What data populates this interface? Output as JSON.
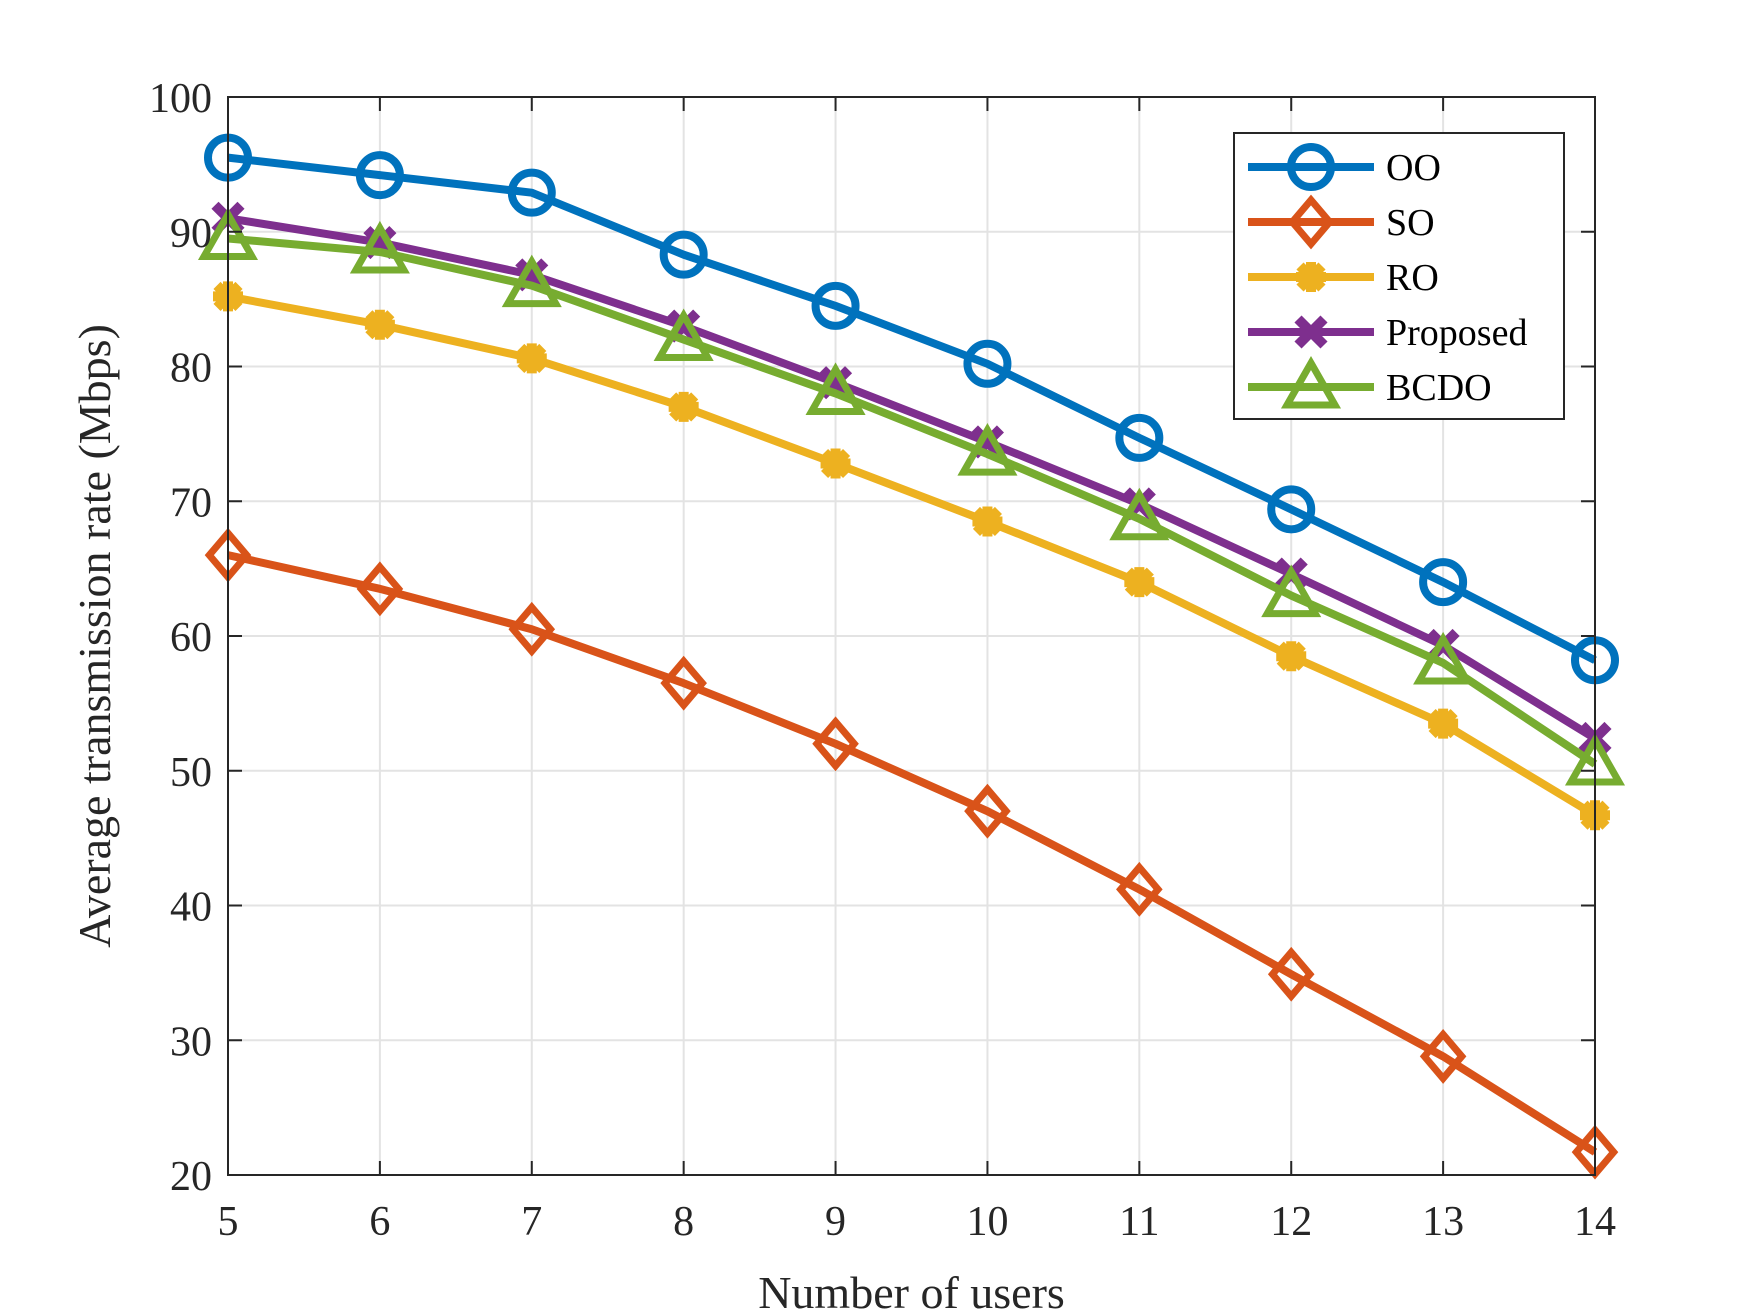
{
  "chart_data": {
    "type": "line",
    "title": "",
    "xlabel": "Number of users",
    "ylabel": "Average transmission rate (Mbps)",
    "x": [
      5,
      6,
      7,
      8,
      9,
      10,
      11,
      12,
      13,
      14
    ],
    "xlim": [
      5,
      14
    ],
    "ylim": [
      20,
      100
    ],
    "xticks": [
      5,
      6,
      7,
      8,
      9,
      10,
      11,
      12,
      13,
      14
    ],
    "yticks": [
      20,
      30,
      40,
      50,
      60,
      70,
      80,
      90,
      100
    ],
    "grid": true,
    "legend_position": "top-right",
    "series": [
      {
        "name": "OO",
        "marker": "circle",
        "color": "#0072BD",
        "values": [
          95.5,
          94.2,
          92.9,
          88.3,
          84.5,
          80.2,
          74.7,
          69.4,
          64.0,
          58.2
        ]
      },
      {
        "name": "SO",
        "marker": "diamond",
        "color": "#D95319",
        "values": [
          66.0,
          63.5,
          60.5,
          56.5,
          52.0,
          47.0,
          41.2,
          34.9,
          28.8,
          21.7
        ]
      },
      {
        "name": "RO",
        "marker": "plus-star",
        "color": "#EDB120",
        "values": [
          85.2,
          83.1,
          80.6,
          77.0,
          72.8,
          68.5,
          64.0,
          58.5,
          53.5,
          46.7
        ]
      },
      {
        "name": "Proposed",
        "marker": "x",
        "color": "#7E2F8E",
        "values": [
          91.0,
          89.2,
          86.8,
          83.0,
          78.8,
          74.4,
          69.8,
          64.6,
          59.3,
          52.4
        ]
      },
      {
        "name": "BCDO",
        "marker": "triangle",
        "color": "#77AC30",
        "values": [
          89.5,
          88.5,
          86.0,
          82.0,
          78.0,
          73.5,
          68.7,
          63.0,
          58.0,
          50.5
        ]
      }
    ]
  }
}
